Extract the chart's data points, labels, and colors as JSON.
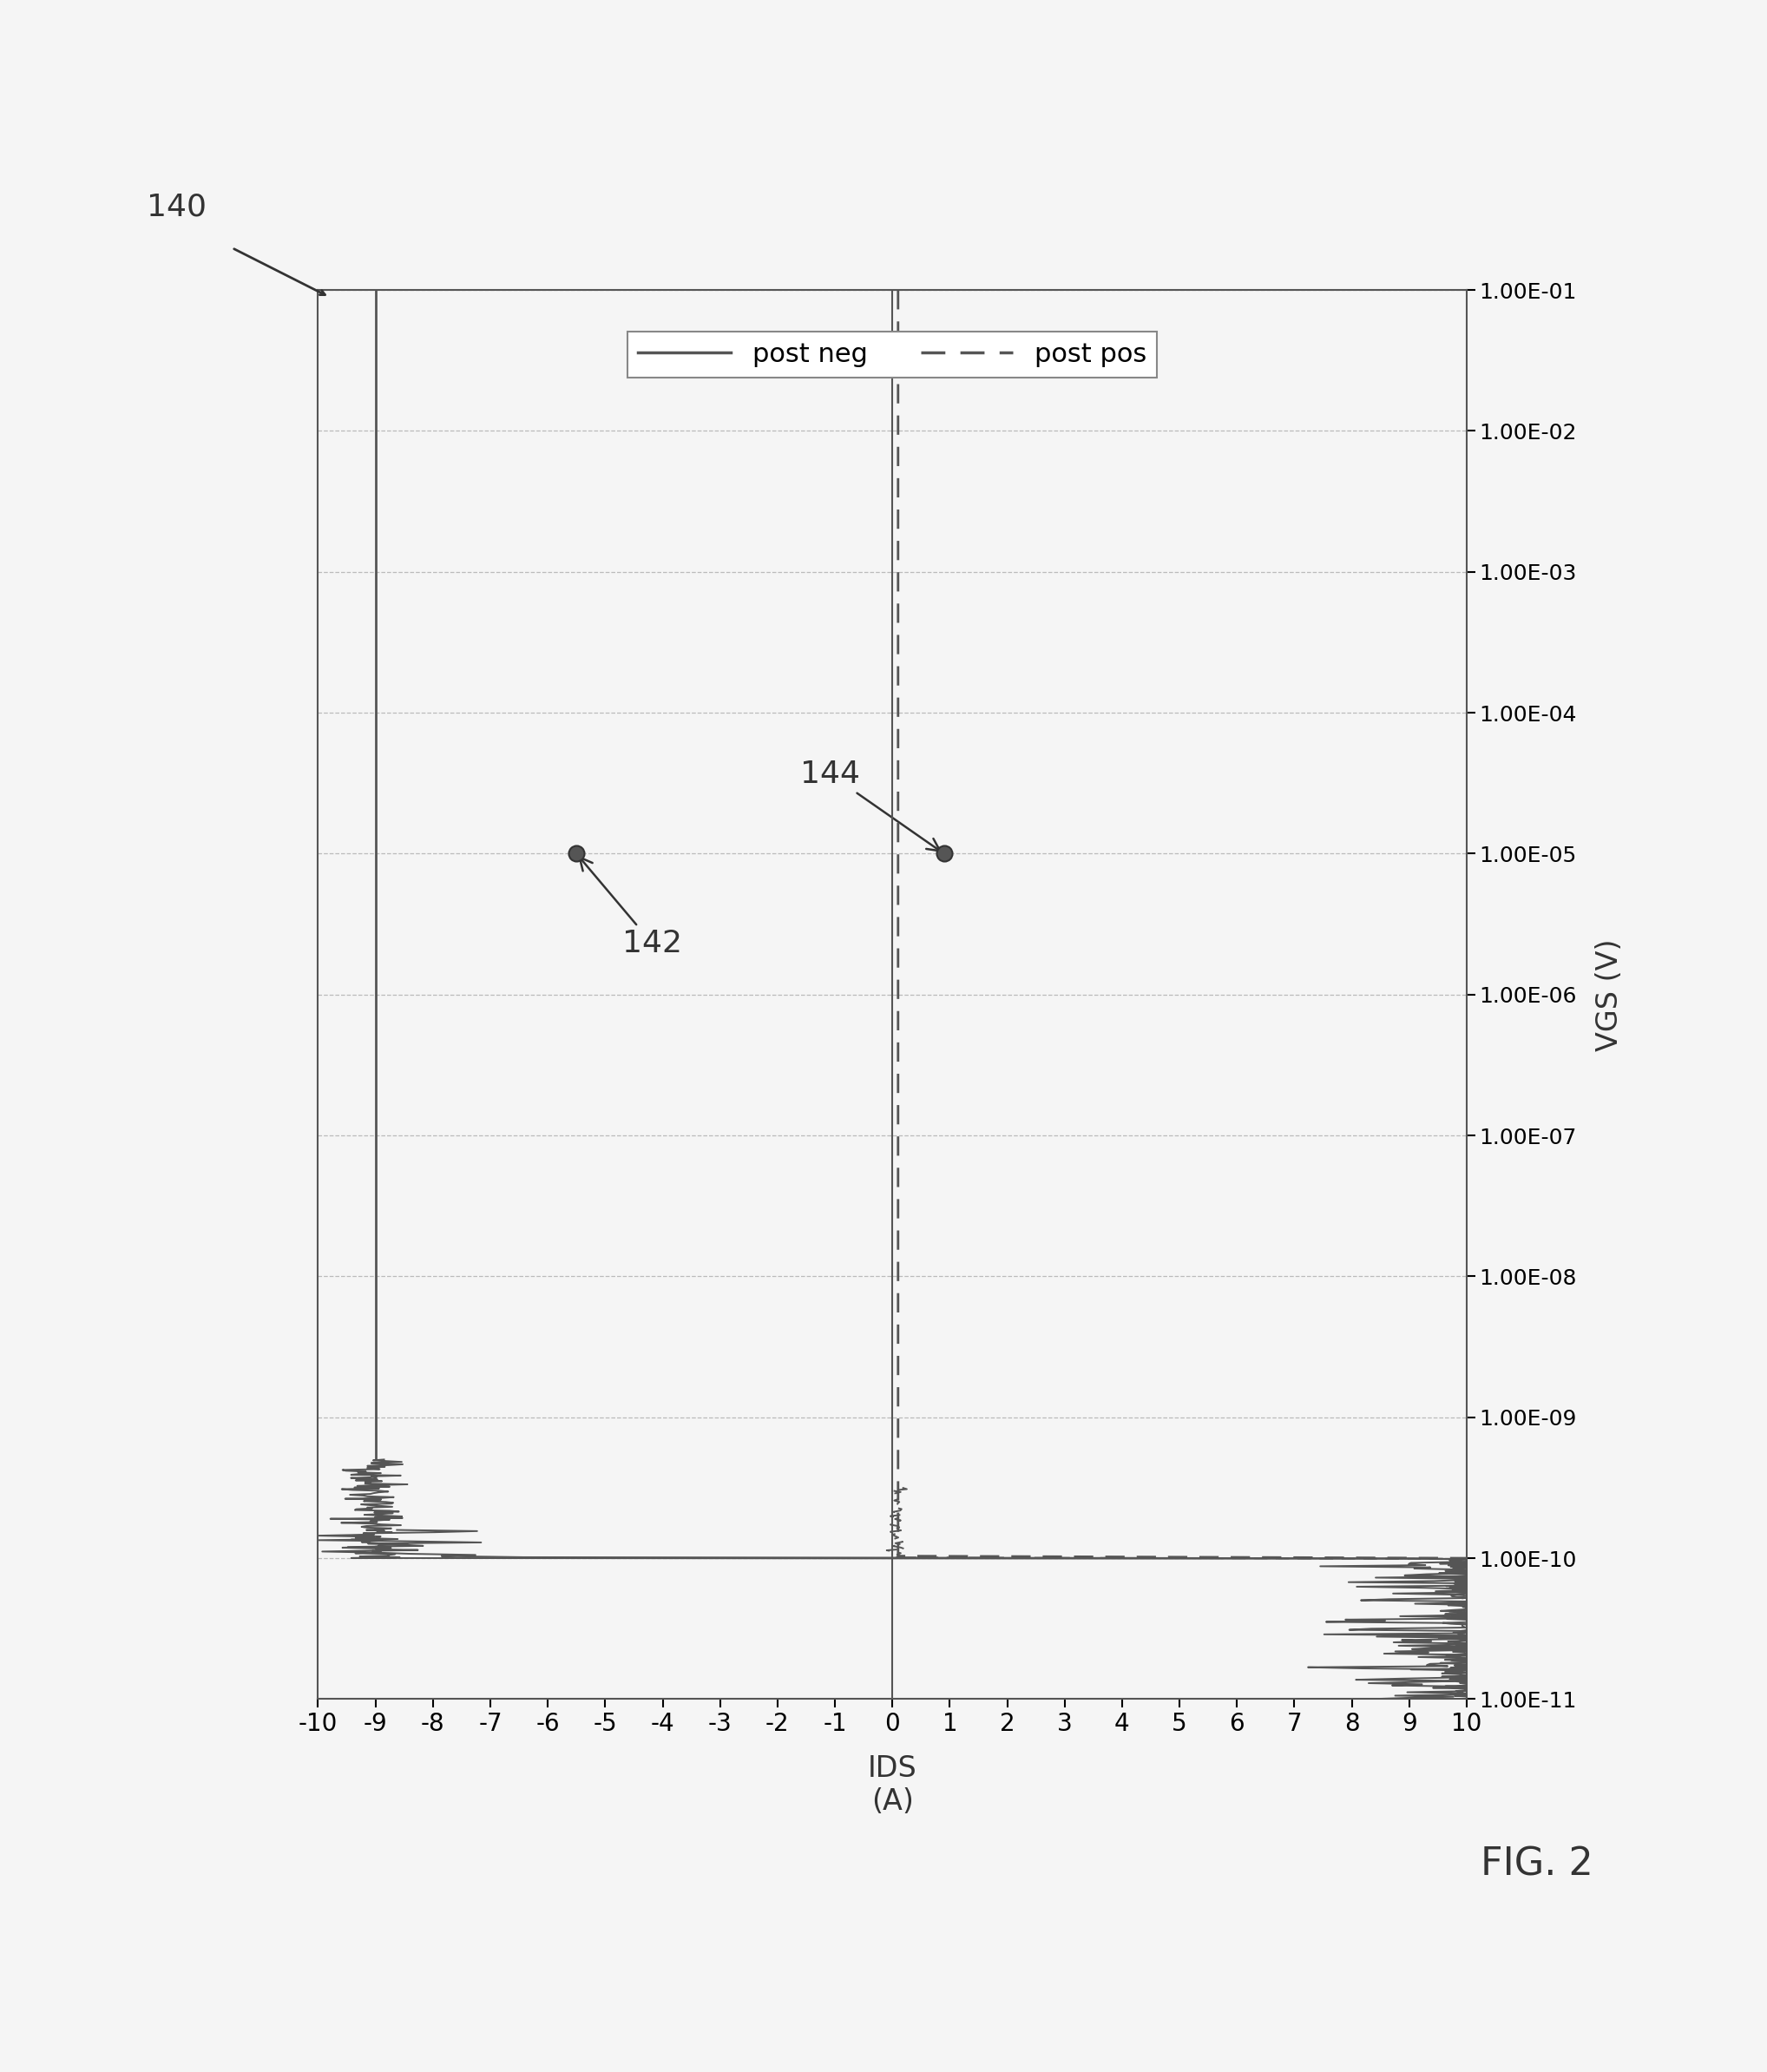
{
  "xlabel": "IDS\n(A)",
  "ylabel": "VGS (V)",
  "xlim": [
    -10,
    10
  ],
  "xticks": [
    -10,
    -9,
    -8,
    -7,
    -6,
    -5,
    -4,
    -3,
    -2,
    -1,
    0,
    1,
    2,
    3,
    4,
    5,
    6,
    7,
    8,
    9,
    10
  ],
  "ytick_labels": [
    "1.00E-01",
    "1.00E-02",
    "1.00E-03",
    "1.00E-04",
    "1.00E-05",
    "1.00E-06",
    "1.00E-07",
    "1.00E-08",
    "1.00E-09",
    "1.00E-10",
    "1.00E-11"
  ],
  "ytick_positions_exp": [
    -1,
    -2,
    -3,
    -4,
    -5,
    -6,
    -7,
    -8,
    -9,
    -10,
    -11
  ],
  "legend_labels": [
    "post neg",
    "post pos"
  ],
  "point_142_x": -5.5,
  "point_142_yexp": -5,
  "point_144_x": 0.9,
  "point_144_yexp": -5,
  "background_color": "#f5f5f5",
  "line_color": "#555555",
  "grid_color": "#bbbbbb",
  "font_color": "#333333",
  "fig_label": "140",
  "fig_num": "FIG. 2"
}
